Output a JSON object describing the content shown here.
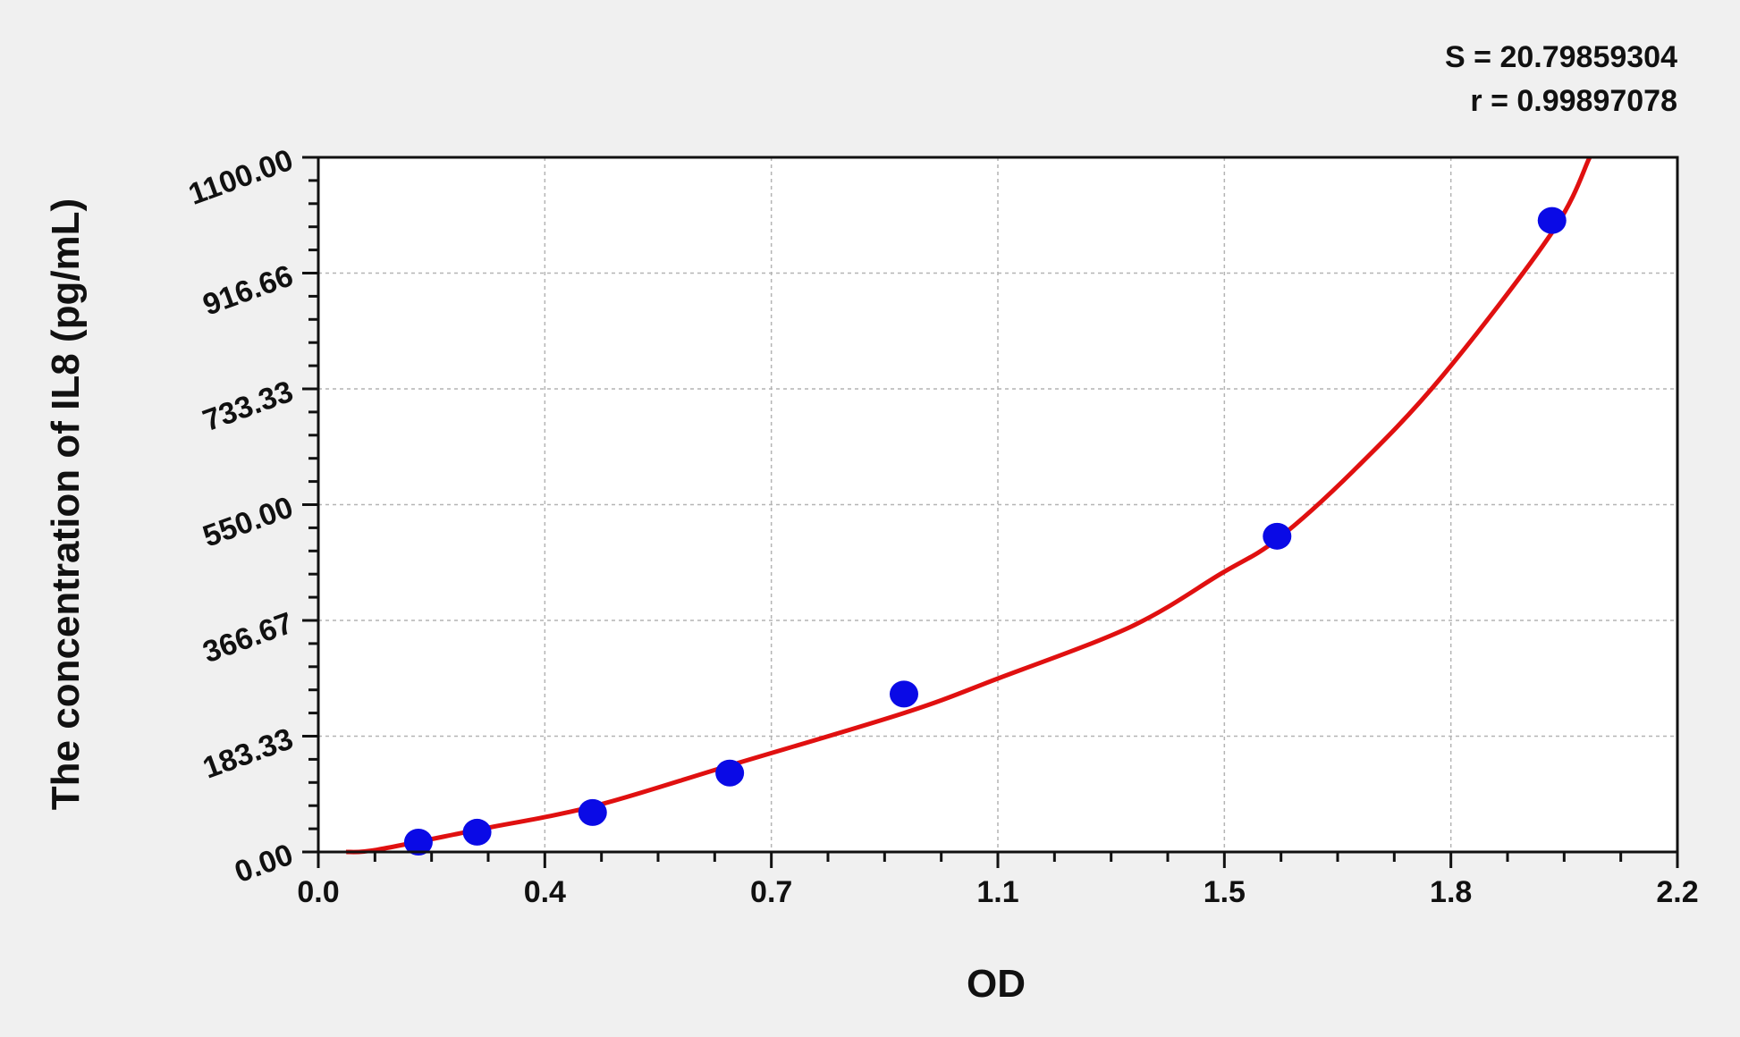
{
  "chart_data": {
    "type": "scatter",
    "title": "",
    "xlabel": "OD",
    "ylabel": "The concentration of IL8 (pg/mL)",
    "xlim": [
      0,
      2.2
    ],
    "ylim": [
      0,
      1100
    ],
    "x_ticks": [
      "0.0",
      "0.4",
      "0.7",
      "1.1",
      "1.5",
      "1.8",
      "2.2"
    ],
    "y_ticks": [
      "0.00",
      "183.33",
      "366.67",
      "550.00",
      "733.33",
      "916.66",
      "1100.00"
    ],
    "grid": true,
    "stats": {
      "s_label": "S = 20.79859304",
      "r_label": "r = 0.99897078"
    },
    "points": [
      {
        "x": 0.162,
        "y": 15.6
      },
      {
        "x": 0.257,
        "y": 31.25
      },
      {
        "x": 0.444,
        "y": 62.5
      },
      {
        "x": 0.666,
        "y": 125
      },
      {
        "x": 0.948,
        "y": 250
      },
      {
        "x": 1.552,
        "y": 500
      },
      {
        "x": 1.997,
        "y": 1000
      }
    ],
    "fit_curve": [
      [
        0.045,
        0
      ],
      [
        0.095,
        3.5
      ],
      [
        0.257,
        35
      ],
      [
        0.444,
        72
      ],
      [
        0.666,
        137
      ],
      [
        0.948,
        220
      ],
      [
        1.101,
        275
      ],
      [
        1.316,
        357
      ],
      [
        1.46,
        440
      ],
      [
        1.552,
        495
      ],
      [
        1.676,
        604
      ],
      [
        1.819,
        753
      ],
      [
        1.997,
        981
      ],
      [
        2.058,
        1100
      ]
    ],
    "colors": {
      "points": "#0a0ae6",
      "curve": "#e01010",
      "background": "#f0f0f0",
      "plot": "#ffffff",
      "grid": "#b4b4b4"
    }
  }
}
